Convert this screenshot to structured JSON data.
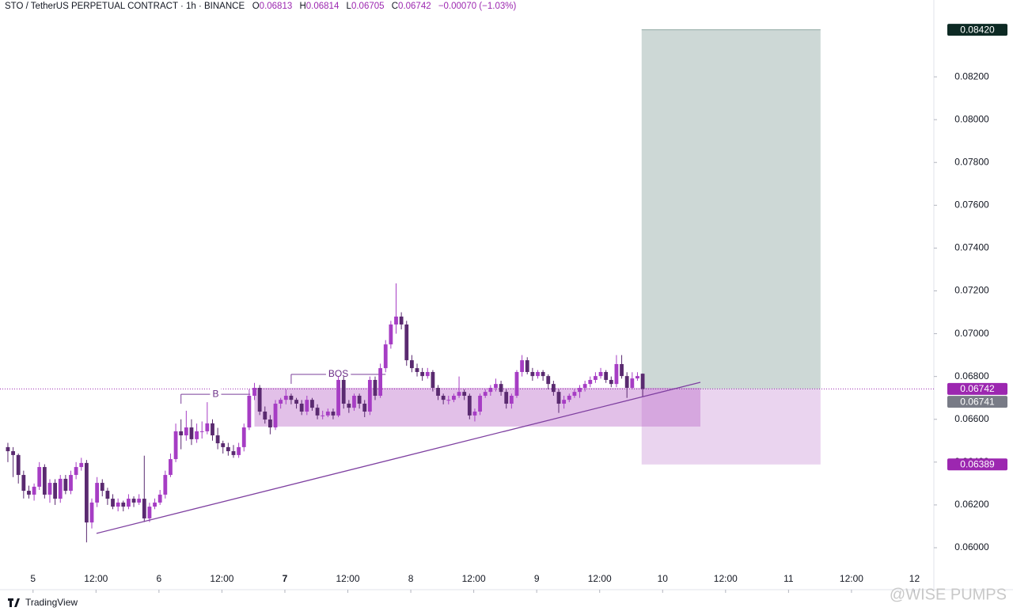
{
  "chart_data": {
    "type": "candlestick",
    "header": {
      "symbol": "STO / TetherUS PERPETUAL CONTRACT · 1h · BINANCE",
      "open_label": "O",
      "high_label": "H",
      "low_label": "L",
      "close_label": "C",
      "change": "−0.00070 (−1.03%)"
    },
    "up_color": "#a63dc4",
    "down_color": "#5a2a70",
    "candles": [
      [
        0.0647,
        0.0649,
        0.064,
        0.06451
      ],
      [
        0.06451,
        0.0647,
        0.0633,
        0.06433
      ],
      [
        0.06433,
        0.0644,
        0.063,
        0.0634
      ],
      [
        0.0634,
        0.0636,
        0.0623,
        0.06266
      ],
      [
        0.06266,
        0.0629,
        0.0623,
        0.06248
      ],
      [
        0.06248,
        0.063,
        0.0622,
        0.06285
      ],
      [
        0.06285,
        0.064,
        0.0627,
        0.06377
      ],
      [
        0.06377,
        0.0639,
        0.0623,
        0.06248
      ],
      [
        0.06248,
        0.0632,
        0.0621,
        0.06303
      ],
      [
        0.06303,
        0.0632,
        0.062,
        0.06229
      ],
      [
        0.06229,
        0.0634,
        0.0621,
        0.06322
      ],
      [
        0.06322,
        0.0634,
        0.0625,
        0.06266
      ],
      [
        0.06266,
        0.0636,
        0.0625,
        0.0634
      ],
      [
        0.0634,
        0.064,
        0.0632,
        0.06377
      ],
      [
        0.06377,
        0.0642,
        0.0636,
        0.06396
      ],
      [
        0.06396,
        0.0641,
        0.06025,
        0.06118
      ],
      [
        0.06118,
        0.0623,
        0.0609,
        0.06211
      ],
      [
        0.06211,
        0.0633,
        0.0619,
        0.06303
      ],
      [
        0.06303,
        0.0632,
        0.0624,
        0.06266
      ],
      [
        0.06266,
        0.0628,
        0.062,
        0.06229
      ],
      [
        0.06229,
        0.0625,
        0.0618,
        0.06192
      ],
      [
        0.06192,
        0.0623,
        0.0617,
        0.06211
      ],
      [
        0.06211,
        0.0622,
        0.0617,
        0.06192
      ],
      [
        0.06192,
        0.0625,
        0.0618,
        0.06229
      ],
      [
        0.06229,
        0.0624,
        0.0619,
        0.06211
      ],
      [
        0.06211,
        0.0625,
        0.062,
        0.06229
      ],
      [
        0.06229,
        0.0643,
        0.0612,
        0.06137
      ],
      [
        0.06137,
        0.0621,
        0.0612,
        0.06192
      ],
      [
        0.06192,
        0.0623,
        0.0618,
        0.06211
      ],
      [
        0.06211,
        0.0627,
        0.062,
        0.06248
      ],
      [
        0.06248,
        0.0636,
        0.0623,
        0.0634
      ],
      [
        0.0634,
        0.0644,
        0.0633,
        0.06414
      ],
      [
        0.06414,
        0.0658,
        0.064,
        0.06544
      ],
      [
        0.06544,
        0.066,
        0.0646,
        0.06525
      ],
      [
        0.06525,
        0.0664,
        0.065,
        0.06562
      ],
      [
        0.06562,
        0.066,
        0.0648,
        0.06507
      ],
      [
        0.06507,
        0.0658,
        0.0649,
        0.06544
      ],
      [
        0.06544,
        0.0659,
        0.0651,
        0.06544
      ],
      [
        0.06544,
        0.0668,
        0.0653,
        0.06581
      ],
      [
        0.06581,
        0.066,
        0.065,
        0.06525
      ],
      [
        0.06525,
        0.0656,
        0.0646,
        0.06488
      ],
      [
        0.06488,
        0.065,
        0.0644,
        0.0647
      ],
      [
        0.0647,
        0.0649,
        0.0643,
        0.06451
      ],
      [
        0.06451,
        0.0648,
        0.0642,
        0.06433
      ],
      [
        0.06433,
        0.0649,
        0.0642,
        0.0647
      ],
      [
        0.0647,
        0.0658,
        0.0645,
        0.06562
      ],
      [
        0.06562,
        0.0674,
        0.0655,
        0.0671
      ],
      [
        0.0671,
        0.0677,
        0.0669,
        0.06747
      ],
      [
        0.06747,
        0.0676,
        0.0662,
        0.06636
      ],
      [
        0.06636,
        0.0666,
        0.0658,
        0.06599
      ],
      [
        0.06599,
        0.0662,
        0.0653,
        0.06562
      ],
      [
        0.06562,
        0.0669,
        0.0655,
        0.06673
      ],
      [
        0.06673,
        0.067,
        0.0665,
        0.06691
      ],
      [
        0.06691,
        0.0674,
        0.0667,
        0.0671
      ],
      [
        0.0671,
        0.0672,
        0.0667,
        0.06691
      ],
      [
        0.06691,
        0.067,
        0.0665,
        0.06673
      ],
      [
        0.06673,
        0.0669,
        0.0662,
        0.06636
      ],
      [
        0.06636,
        0.0671,
        0.0662,
        0.06691
      ],
      [
        0.06691,
        0.067,
        0.0664,
        0.06654
      ],
      [
        0.06654,
        0.0667,
        0.066,
        0.06618
      ],
      [
        0.06618,
        0.0664,
        0.066,
        0.06618
      ],
      [
        0.06618,
        0.0665,
        0.0661,
        0.06636
      ],
      [
        0.06636,
        0.0665,
        0.066,
        0.06618
      ],
      [
        0.06618,
        0.068,
        0.0661,
        0.06784
      ],
      [
        0.06784,
        0.068,
        0.0665,
        0.06673
      ],
      [
        0.06673,
        0.0669,
        0.0663,
        0.06654
      ],
      [
        0.06654,
        0.0672,
        0.0664,
        0.0671
      ],
      [
        0.0671,
        0.0672,
        0.0665,
        0.06673
      ],
      [
        0.06673,
        0.0669,
        0.0661,
        0.06636
      ],
      [
        0.06636,
        0.068,
        0.0662,
        0.06784
      ],
      [
        0.06784,
        0.068,
        0.0669,
        0.0671
      ],
      [
        0.0671,
        0.0686,
        0.067,
        0.06839
      ],
      [
        0.06839,
        0.0697,
        0.0682,
        0.0695
      ],
      [
        0.0695,
        0.0706,
        0.0693,
        0.07043
      ],
      [
        0.07043,
        0.07235,
        0.07,
        0.0708
      ],
      [
        0.0708,
        0.071,
        0.0702,
        0.07043
      ],
      [
        0.07043,
        0.0706,
        0.0685,
        0.06876
      ],
      [
        0.06876,
        0.069,
        0.0682,
        0.06839
      ],
      [
        0.06839,
        0.0686,
        0.068,
        0.06821
      ],
      [
        0.06821,
        0.0684,
        0.0678,
        0.06802
      ],
      [
        0.06802,
        0.0684,
        0.0679,
        0.06821
      ],
      [
        0.06821,
        0.0683,
        0.0673,
        0.06747
      ],
      [
        0.06747,
        0.0676,
        0.0669,
        0.0671
      ],
      [
        0.0671,
        0.0672,
        0.0667,
        0.06691
      ],
      [
        0.06691,
        0.0671,
        0.0667,
        0.06691
      ],
      [
        0.06691,
        0.0672,
        0.0668,
        0.0671
      ],
      [
        0.0671,
        0.068,
        0.067,
        0.06728
      ],
      [
        0.06728,
        0.0674,
        0.0669,
        0.0671
      ],
      [
        0.0671,
        0.0672,
        0.066,
        0.06618
      ],
      [
        0.06618,
        0.0665,
        0.0659,
        0.06636
      ],
      [
        0.06636,
        0.0672,
        0.0662,
        0.0671
      ],
      [
        0.0671,
        0.0674,
        0.067,
        0.06728
      ],
      [
        0.06728,
        0.0676,
        0.0671,
        0.06747
      ],
      [
        0.06747,
        0.0679,
        0.0673,
        0.06765
      ],
      [
        0.06765,
        0.0678,
        0.0671,
        0.06728
      ],
      [
        0.06728,
        0.0674,
        0.0665,
        0.06673
      ],
      [
        0.06673,
        0.0672,
        0.0665,
        0.0671
      ],
      [
        0.0671,
        0.0683,
        0.067,
        0.06821
      ],
      [
        0.06821,
        0.069,
        0.068,
        0.06876
      ],
      [
        0.06876,
        0.0689,
        0.0681,
        0.06821
      ],
      [
        0.06821,
        0.0684,
        0.0678,
        0.06802
      ],
      [
        0.06802,
        0.0683,
        0.0679,
        0.06821
      ],
      [
        0.06821,
        0.0683,
        0.0678,
        0.06802
      ],
      [
        0.06802,
        0.0681,
        0.0674,
        0.06765
      ],
      [
        0.06765,
        0.0678,
        0.0671,
        0.06728
      ],
      [
        0.06728,
        0.0674,
        0.0663,
        0.06673
      ],
      [
        0.06673,
        0.0671,
        0.0665,
        0.06691
      ],
      [
        0.06691,
        0.0672,
        0.0668,
        0.0671
      ],
      [
        0.0671,
        0.0674,
        0.067,
        0.06728
      ],
      [
        0.06728,
        0.0676,
        0.067,
        0.06747
      ],
      [
        0.06747,
        0.0678,
        0.0673,
        0.06765
      ],
      [
        0.06765,
        0.068,
        0.0675,
        0.06784
      ],
      [
        0.06784,
        0.0682,
        0.0677,
        0.06802
      ],
      [
        0.06802,
        0.0684,
        0.0679,
        0.06821
      ],
      [
        0.06821,
        0.0683,
        0.0677,
        0.06784
      ],
      [
        0.06784,
        0.068,
        0.0675,
        0.06765
      ],
      [
        0.06765,
        0.069,
        0.0675,
        0.06858
      ],
      [
        0.06858,
        0.069,
        0.0679,
        0.06802
      ],
      [
        0.06802,
        0.0682,
        0.067,
        0.06747
      ],
      [
        0.06747,
        0.0682,
        0.0674,
        0.06791
      ],
      [
        0.06791,
        0.0682,
        0.0678,
        0.06802
      ],
      [
        0.06813,
        0.06814,
        0.06705,
        0.06742
      ]
    ],
    "xlim": [
      -1.5,
      176.5
    ],
    "xticks": [
      {
        "value": 4.8,
        "label": "5"
      },
      {
        "value": 16.8,
        "label": "12:00"
      },
      {
        "value": 28.8,
        "label": "6"
      },
      {
        "value": 40.8,
        "label": "12:00"
      },
      {
        "value": 52.8,
        "label": "7"
      },
      {
        "value": 64.8,
        "label": "12:00"
      },
      {
        "value": 76.8,
        "label": "8"
      },
      {
        "value": 88.8,
        "label": "12:00"
      },
      {
        "value": 100.8,
        "label": "9"
      },
      {
        "value": 112.8,
        "label": "12:00"
      },
      {
        "value": 124.8,
        "label": "10"
      },
      {
        "value": 136.8,
        "label": "12:00"
      },
      {
        "value": 148.8,
        "label": "11"
      },
      {
        "value": 160.8,
        "label": "12:00"
      },
      {
        "value": 172.8,
        "label": "12"
      }
    ],
    "ylim": [
      0.05804,
      0.08559
    ],
    "yticks": [
      {
        "value": 0.06,
        "label": "0.06000"
      },
      {
        "value": 0.062,
        "label": "0.06200"
      },
      {
        "value": 0.064,
        "label": "0.06400"
      },
      {
        "value": 0.066,
        "label": "0.06600"
      },
      {
        "value": 0.068,
        "label": "0.06800"
      },
      {
        "value": 0.07,
        "label": "0.07000"
      },
      {
        "value": 0.072,
        "label": "0.07200"
      },
      {
        "value": 0.074,
        "label": "0.07400"
      },
      {
        "value": 0.076,
        "label": "0.07600"
      },
      {
        "value": 0.078,
        "label": "0.07800"
      },
      {
        "value": 0.08,
        "label": "0.08000"
      },
      {
        "value": 0.082,
        "label": "0.08200"
      }
    ],
    "current_price": {
      "value": 0.06742,
      "label": "0.06742"
    },
    "position": {
      "x": [
        120.8,
        154.9
      ],
      "target": {
        "value": 0.0842,
        "label": "0.08420"
      },
      "entry": {
        "value": 0.06741,
        "label": "0.06741"
      },
      "stop": {
        "value": 0.06389,
        "label": "0.06389"
      }
    },
    "zone": {
      "x": [
        47,
        132
      ],
      "y": [
        0.06566,
        0.06747
      ]
    },
    "trendline": {
      "x": [
        16.9,
        132
      ],
      "y": [
        0.06067,
        0.06773
      ]
    },
    "annotations": [
      {
        "text": "B",
        "x": [
          33,
          46.2
        ],
        "y": 0.06717
      },
      {
        "text": "BOS",
        "x": [
          54,
          72
        ],
        "y": 0.0681
      }
    ],
    "branding": "TradingView",
    "watermark": "@WISE PUMPS"
  }
}
